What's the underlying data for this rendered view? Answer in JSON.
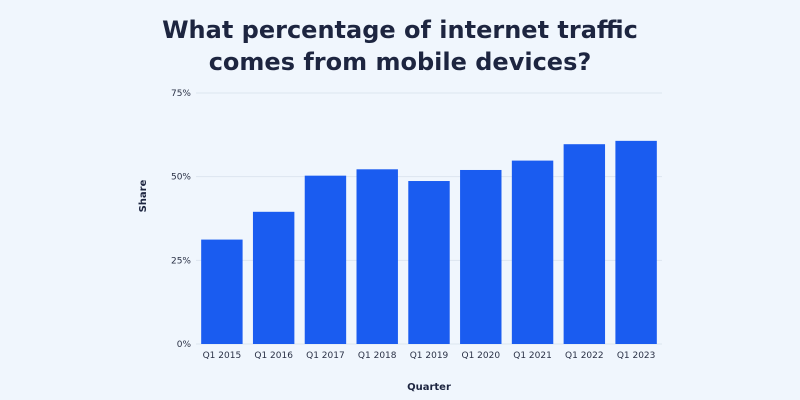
{
  "chart_data": {
    "type": "bar",
    "title_lines": [
      "What percentage of internet traffic",
      "comes from mobile devices?"
    ],
    "xlabel": "Quarter",
    "ylabel": "Share",
    "categories": [
      "Q1 2015",
      "Q1 2016",
      "Q1 2017",
      "Q1 2018",
      "Q1 2019",
      "Q1 2020",
      "Q1 2021",
      "Q1 2022",
      "Q1 2023"
    ],
    "values": [
      31.2,
      39.5,
      50.3,
      52.2,
      48.7,
      52.0,
      54.8,
      59.7,
      60.7
    ],
    "ylim": [
      0,
      75
    ],
    "yticks": [
      0,
      25,
      50,
      75
    ],
    "ytick_labels": [
      "0%",
      "25%",
      "50%",
      "75%"
    ],
    "grid": true,
    "legend": "none",
    "bar_color": "#1a5cf0",
    "grid_color": "#dde5ef"
  }
}
